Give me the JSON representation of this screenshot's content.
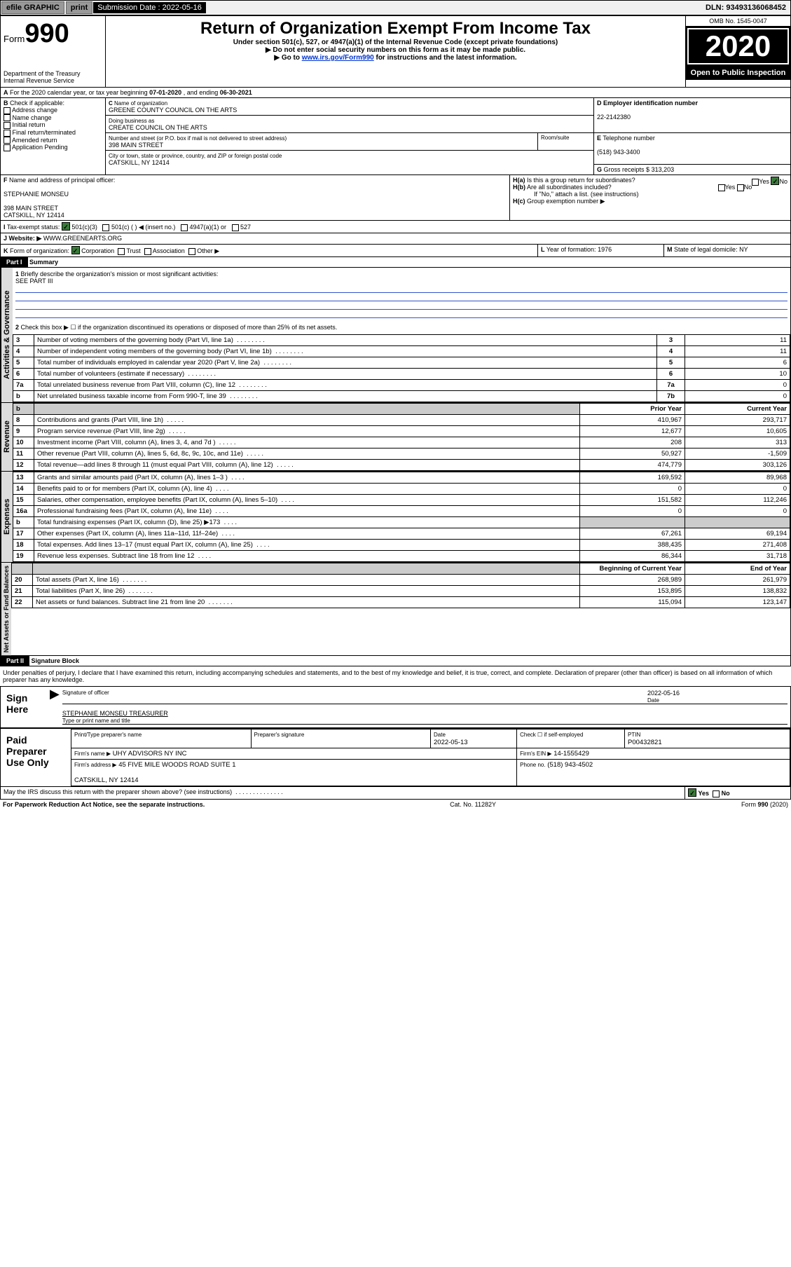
{
  "topbar": {
    "efile": "efile GRAPHIC",
    "print": "print",
    "subdate_label": "Submission Date :",
    "subdate": "2022-05-16",
    "dln": "DLN: 93493136068452"
  },
  "header": {
    "form_prefix": "Form",
    "form_num": "990",
    "dept": "Department of the Treasury\nInternal Revenue Service",
    "title": "Return of Organization Exempt From Income Tax",
    "sub1": "Under section 501(c), 527, or 4947(a)(1) of the Internal Revenue Code (except private foundations)",
    "sub2": "▶ Do not enter social security numbers on this form as it may be made public.",
    "sub3_pre": "▶ Go to ",
    "sub3_link": "www.irs.gov/Form990",
    "sub3_post": " for instructions and the latest information.",
    "omb": "OMB No. 1545-0047",
    "year": "2020",
    "open": "Open to Public Inspection"
  },
  "A": {
    "text": "For the 2020 calendar year, or tax year beginning ",
    "begin": "07-01-2020",
    "mid": " , and ending ",
    "end": "06-30-2021"
  },
  "B": {
    "label": "Check if applicable:",
    "items": [
      "Address change",
      "Name change",
      "Initial return",
      "Final return/terminated",
      "Amended return",
      "Application Pending"
    ]
  },
  "C": {
    "name_label": "Name of organization",
    "name": "GREENE COUNTY COUNCIL ON THE ARTS",
    "dba_label": "Doing business as",
    "dba": "CREATE COUNCIL ON THE ARTS",
    "addr_label": "Number and street (or P.O. box if mail is not delivered to street address)",
    "addr": "398 MAIN STREET",
    "room_label": "Room/suite",
    "city_label": "City or town, state or province, country, and ZIP or foreign postal code",
    "city": "CATSKILL, NY  12414"
  },
  "D": {
    "label": "Employer identification number",
    "val": "22-2142380"
  },
  "E": {
    "label": "Telephone number",
    "val": "(518) 943-3400"
  },
  "G": {
    "label": "Gross receipts $",
    "val": "313,203"
  },
  "F": {
    "label": "Name and address of principal officer:",
    "name": "STEPHANIE MONSEU",
    "addr": "398 MAIN STREET\nCATSKILL, NY  12414"
  },
  "H": {
    "a": "Is this a group return for subordinates?",
    "b": "Are all subordinates included?",
    "b_note": "If \"No,\" attach a list. (see instructions)",
    "c": "Group exemption number ▶"
  },
  "I": {
    "label": "Tax-exempt status:",
    "opts": [
      "501(c)(3)",
      "501(c) (  ) ◀ (insert no.)",
      "4947(a)(1) or",
      "527"
    ]
  },
  "J": {
    "label": "Website: ▶",
    "val": "WWW.GREENEARTS.ORG"
  },
  "K": {
    "label": "Form of organization:",
    "opts": [
      "Corporation",
      "Trust",
      "Association",
      "Other ▶"
    ]
  },
  "L": {
    "label": "Year of formation:",
    "val": "1976"
  },
  "M": {
    "label": "State of legal domicile:",
    "val": "NY"
  },
  "part1": {
    "title": "Part I",
    "head": "Summary",
    "q1": "Briefly describe the organization's mission or most significant activities:",
    "q1_val": "SEE PART III",
    "q2": "Check this box ▶ ☐  if the organization discontinued its operations or disposed of more than 25% of its net assets.",
    "rows_gov": [
      {
        "n": "3",
        "t": "Number of voting members of the governing body (Part VI, line 1a)",
        "box": "3",
        "v": "11"
      },
      {
        "n": "4",
        "t": "Number of independent voting members of the governing body (Part VI, line 1b)",
        "box": "4",
        "v": "11"
      },
      {
        "n": "5",
        "t": "Total number of individuals employed in calendar year 2020 (Part V, line 2a)",
        "box": "5",
        "v": "6"
      },
      {
        "n": "6",
        "t": "Total number of volunteers (estimate if necessary)",
        "box": "6",
        "v": "10"
      },
      {
        "n": "7a",
        "t": "Total unrelated business revenue from Part VIII, column (C), line 12",
        "box": "7a",
        "v": "0"
      },
      {
        "n": "b",
        "t": "Net unrelated business taxable income from Form 990-T, line 39",
        "box": "7b",
        "v": "0"
      }
    ],
    "col_prior": "Prior Year",
    "col_curr": "Current Year",
    "rows_rev": [
      {
        "n": "8",
        "t": "Contributions and grants (Part VIII, line 1h)",
        "p": "410,967",
        "c": "293,717"
      },
      {
        "n": "9",
        "t": "Program service revenue (Part VIII, line 2g)",
        "p": "12,677",
        "c": "10,605"
      },
      {
        "n": "10",
        "t": "Investment income (Part VIII, column (A), lines 3, 4, and 7d )",
        "p": "208",
        "c": "313"
      },
      {
        "n": "11",
        "t": "Other revenue (Part VIII, column (A), lines 5, 6d, 8c, 9c, 10c, and 11e)",
        "p": "50,927",
        "c": "-1,509"
      },
      {
        "n": "12",
        "t": "Total revenue—add lines 8 through 11 (must equal Part VIII, column (A), line 12)",
        "p": "474,779",
        "c": "303,126"
      }
    ],
    "rows_exp": [
      {
        "n": "13",
        "t": "Grants and similar amounts paid (Part IX, column (A), lines 1–3 )",
        "p": "169,592",
        "c": "89,968"
      },
      {
        "n": "14",
        "t": "Benefits paid to or for members (Part IX, column (A), line 4)",
        "p": "0",
        "c": "0"
      },
      {
        "n": "15",
        "t": "Salaries, other compensation, employee benefits (Part IX, column (A), lines 5–10)",
        "p": "151,582",
        "c": "112,246"
      },
      {
        "n": "16a",
        "t": "Professional fundraising fees (Part IX, column (A), line 11e)",
        "p": "0",
        "c": "0"
      },
      {
        "n": "b",
        "t": "Total fundraising expenses (Part IX, column (D), line 25) ▶173",
        "p": "",
        "c": "",
        "shade": true
      },
      {
        "n": "17",
        "t": "Other expenses (Part IX, column (A), lines 11a–11d, 11f–24e)",
        "p": "67,261",
        "c": "69,194"
      },
      {
        "n": "18",
        "t": "Total expenses. Add lines 13–17 (must equal Part IX, column (A), line 25)",
        "p": "388,435",
        "c": "271,408"
      },
      {
        "n": "19",
        "t": "Revenue less expenses. Subtract line 18 from line 12",
        "p": "86,344",
        "c": "31,718"
      }
    ],
    "col_beg": "Beginning of Current Year",
    "col_end": "End of Year",
    "rows_net": [
      {
        "n": "20",
        "t": "Total assets (Part X, line 16)",
        "p": "268,989",
        "c": "261,979"
      },
      {
        "n": "21",
        "t": "Total liabilities (Part X, line 26)",
        "p": "153,895",
        "c": "138,832"
      },
      {
        "n": "22",
        "t": "Net assets or fund balances. Subtract line 21 from line 20",
        "p": "115,094",
        "c": "123,147"
      }
    ],
    "side_gov": "Activities & Governance",
    "side_rev": "Revenue",
    "side_exp": "Expenses",
    "side_net": "Net Assets or Fund Balances"
  },
  "part2": {
    "title": "Part II",
    "head": "Signature Block",
    "decl": "Under penalties of perjury, I declare that I have examined this return, including accompanying schedules and statements, and to the best of my knowledge and belief, it is true, correct, and complete. Declaration of preparer (other than officer) is based on all information of which preparer has any knowledge."
  },
  "sign": {
    "here": "Sign Here",
    "sig_label": "Signature of officer",
    "date_label": "Date",
    "date": "2022-05-16",
    "name": "STEPHANIE MONSEU TREASURER",
    "name_label": "Type or print name and title"
  },
  "paid": {
    "title": "Paid Preparer Use Only",
    "c1": "Print/Type preparer's name",
    "c2": "Preparer's signature",
    "c3": "Date",
    "c3v": "2022-05-13",
    "c4": "Check ☐ if self-employed",
    "c5": "PTIN",
    "c5v": "P00432821",
    "firm_label": "Firm's name    ▶",
    "firm": "UHY ADVISORS NY INC",
    "ein_label": "Firm's EIN ▶",
    "ein": "14-1555429",
    "addr_label": "Firm's address ▶",
    "addr": "45 FIVE MILE WOODS ROAD SUITE 1\n\nCATSKILL, NY  12414",
    "phone_label": "Phone no.",
    "phone": "(518) 943-4502"
  },
  "footer": {
    "discuss": "May the IRS discuss this return with the preparer shown above? (see instructions)",
    "yes": "Yes",
    "no": "No",
    "pra": "For Paperwork Reduction Act Notice, see the separate instructions.",
    "cat": "Cat. No. 11282Y",
    "form": "Form 990 (2020)"
  }
}
